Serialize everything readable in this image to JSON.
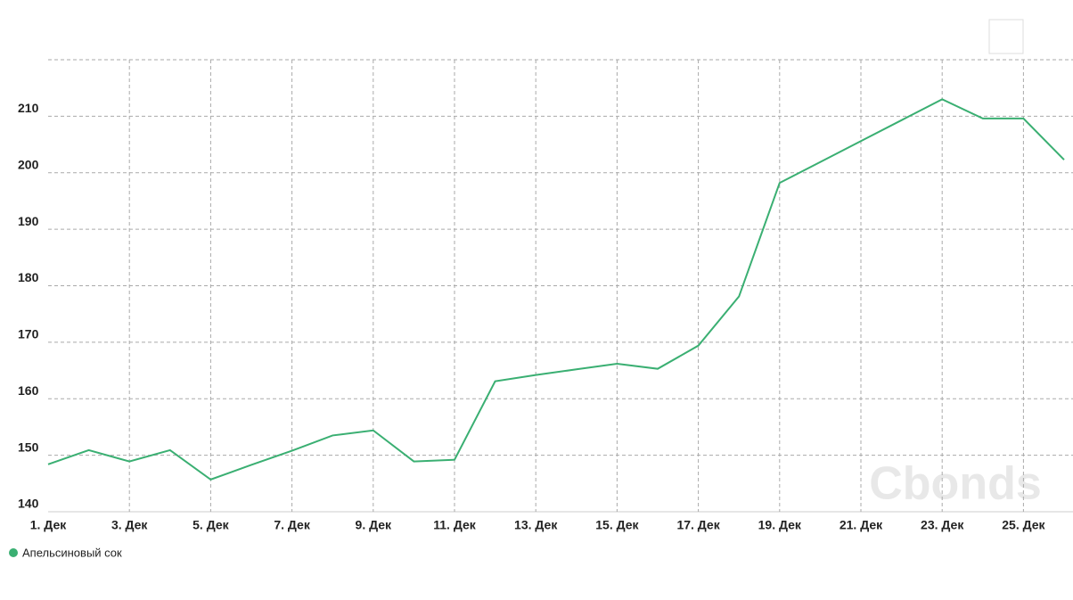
{
  "chart_data": {
    "type": "line",
    "categories": [
      "1. Дек",
      null,
      "3. Дек",
      null,
      "5. Дек",
      null,
      "7. Дек",
      null,
      "9. Дек",
      null,
      "11. Дек",
      null,
      "13. Дек",
      null,
      "15. Дек",
      null,
      "17. Дек",
      null,
      "19. Дек",
      null,
      "21. Дек",
      null,
      "23. Дек",
      null,
      "25. Дек",
      null
    ],
    "series": [
      {
        "name": "Апельсиновый сок",
        "color": "#3aaf72",
        "values": [
          148.4,
          150.9,
          148.9,
          150.9,
          145.7,
          148.3,
          150.8,
          153.5,
          154.4,
          148.9,
          149.2,
          163.1,
          164.2,
          165.2,
          166.2,
          165.3,
          169.4,
          178.1,
          198.2,
          201.9,
          205.6,
          209.3,
          213.0,
          209.6,
          209.6,
          202.3
        ]
      }
    ],
    "ylim": [
      140,
      220
    ],
    "yticks": [
      140,
      150,
      160,
      170,
      180,
      190,
      200,
      210
    ],
    "grid": true,
    "watermark": "Cbonds"
  }
}
